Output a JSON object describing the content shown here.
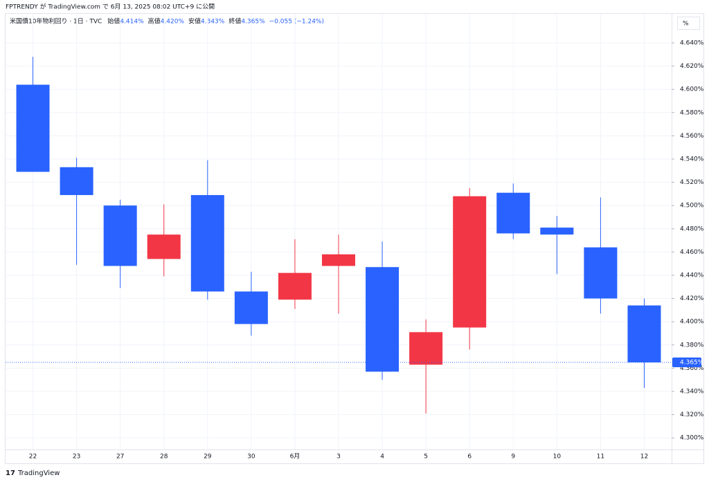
{
  "chart_data": {
    "type": "candlestick",
    "title": "FPTRENDY が TradingView.com で 6月 13, 2025 08:02 UTC+9 に公開",
    "symbol": "米国債10年物利回り · 1日 · TVC",
    "ohlc_labels": [
      "始値",
      "高値",
      "安値",
      "終値"
    ],
    "ohlc_values": [
      "4.414%",
      "4.420%",
      "4.343%",
      "4.365%"
    ],
    "change": "−0.055 (−1.24%)",
    "unit": "%",
    "categories": [
      "22",
      "23",
      "27",
      "28",
      "29",
      "30",
      "6月",
      "3",
      "4",
      "5",
      "6",
      "9",
      "10",
      "11",
      "12"
    ],
    "open": [
      4.604,
      4.533,
      4.5,
      4.454,
      4.509,
      4.426,
      4.419,
      4.448,
      4.447,
      4.363,
      4.395,
      4.511,
      4.481,
      4.464,
      4.414
    ],
    "high": [
      4.628,
      4.541,
      4.505,
      4.501,
      4.539,
      4.443,
      4.471,
      4.475,
      4.469,
      4.402,
      4.515,
      4.519,
      4.491,
      4.507,
      4.42
    ],
    "low": [
      4.529,
      4.449,
      4.429,
      4.439,
      4.419,
      4.388,
      4.411,
      4.407,
      4.35,
      4.321,
      4.376,
      4.471,
      4.441,
      4.407,
      4.343
    ],
    "close": [
      4.529,
      4.509,
      4.448,
      4.475,
      4.426,
      4.398,
      4.442,
      4.458,
      4.357,
      4.391,
      4.508,
      4.476,
      4.475,
      4.42,
      4.365
    ],
    "up_color": "#f23645",
    "down_color": "#2962ff",
    "ylim": [
      4.29,
      4.665
    ],
    "yticks": [
      {
        "value": 4.3,
        "label": "4.300%"
      },
      {
        "value": 4.32,
        "label": "4.320%"
      },
      {
        "value": 4.34,
        "label": "4.340%"
      },
      {
        "value": 4.36,
        "label": "4.360%"
      },
      {
        "value": 4.38,
        "label": "4.380%"
      },
      {
        "value": 4.4,
        "label": "4.400%"
      },
      {
        "value": 4.42,
        "label": "4.420%"
      },
      {
        "value": 4.44,
        "label": "4.440%"
      },
      {
        "value": 4.46,
        "label": "4.460%"
      },
      {
        "value": 4.48,
        "label": "4.480%"
      },
      {
        "value": 4.5,
        "label": "4.500%"
      },
      {
        "value": 4.52,
        "label": "4.520%"
      },
      {
        "value": 4.54,
        "label": "4.540%"
      },
      {
        "value": 4.56,
        "label": "4.560%"
      },
      {
        "value": 4.58,
        "label": "4.580%"
      },
      {
        "value": 4.6,
        "label": "4.600%"
      },
      {
        "value": 4.62,
        "label": "4.620%"
      },
      {
        "value": 4.64,
        "label": "4.640%"
      }
    ],
    "grid": true,
    "last_price": {
      "value": 4.365,
      "label": "4.365%"
    },
    "branding": "TradingView"
  }
}
